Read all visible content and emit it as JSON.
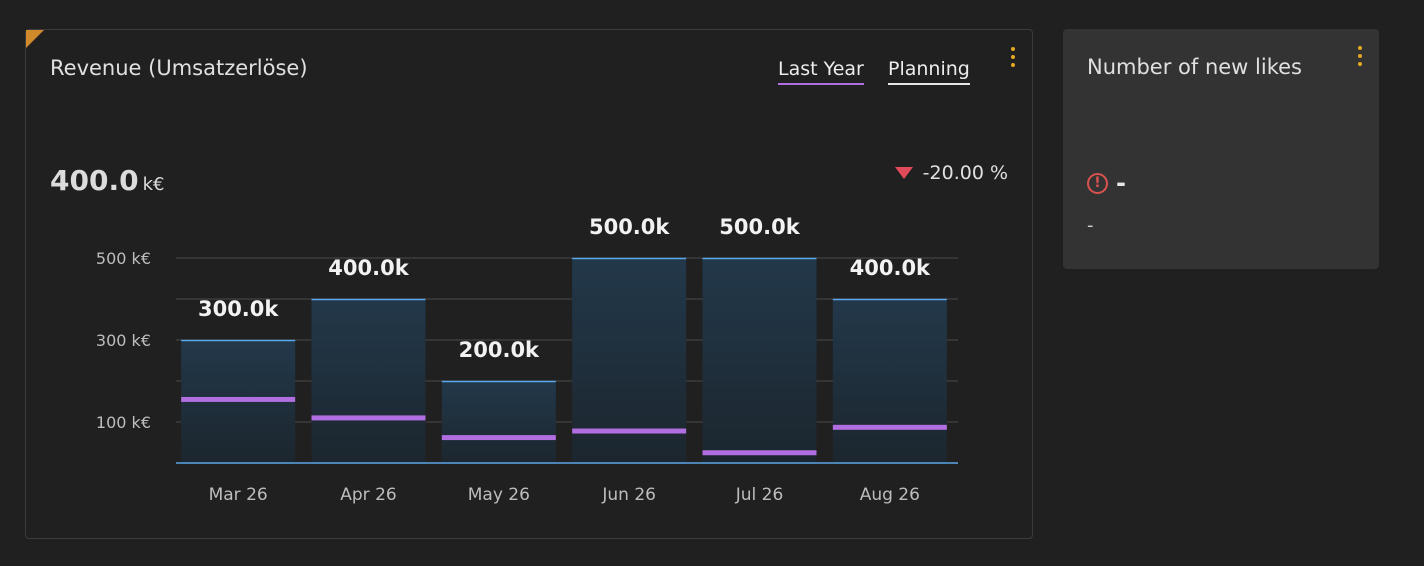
{
  "revenue_card": {
    "title": "Revenue (Umsatzerlöse)",
    "legend": [
      {
        "label": "Last Year",
        "color": "#b06ee0"
      },
      {
        "label": "Planning",
        "color": "#e6e6e6"
      }
    ],
    "kpi_value": "400.0",
    "kpi_unit": "k€",
    "kpi_delta": "-20.00 %",
    "delta_direction": "down",
    "delta_color": "#e04a5a",
    "menu_icon": "kebab-menu-icon"
  },
  "chart_data": {
    "type": "bar",
    "categories": [
      "Mar 26",
      "Apr 26",
      "May 26",
      "Jun 26",
      "Jul 26",
      "Aug 26"
    ],
    "series": [
      {
        "name": "Planning",
        "values": [
          300,
          400,
          200,
          500,
          500,
          400
        ],
        "color": "#5aa6e8"
      },
      {
        "name": "Last Year",
        "values": [
          155,
          110,
          62,
          78,
          25,
          87
        ],
        "color": "#b06ee0"
      }
    ],
    "data_labels": [
      "300.0k",
      "400.0k",
      "200.0k",
      "500.0k",
      "500.0k",
      "400.0k"
    ],
    "y_ticks": [
      {
        "value": 100,
        "label": "100 k€"
      },
      {
        "value": 300,
        "label": "300 k€"
      },
      {
        "value": 500,
        "label": "500 k€"
      }
    ],
    "ylim": [
      0,
      500
    ],
    "grid": true,
    "legend_position": "top-right"
  },
  "likes_card": {
    "title": "Number of new likes",
    "value": "-",
    "subtext": "-",
    "status_icon": "alert-circle-icon",
    "menu_icon": "kebab-menu-icon"
  }
}
